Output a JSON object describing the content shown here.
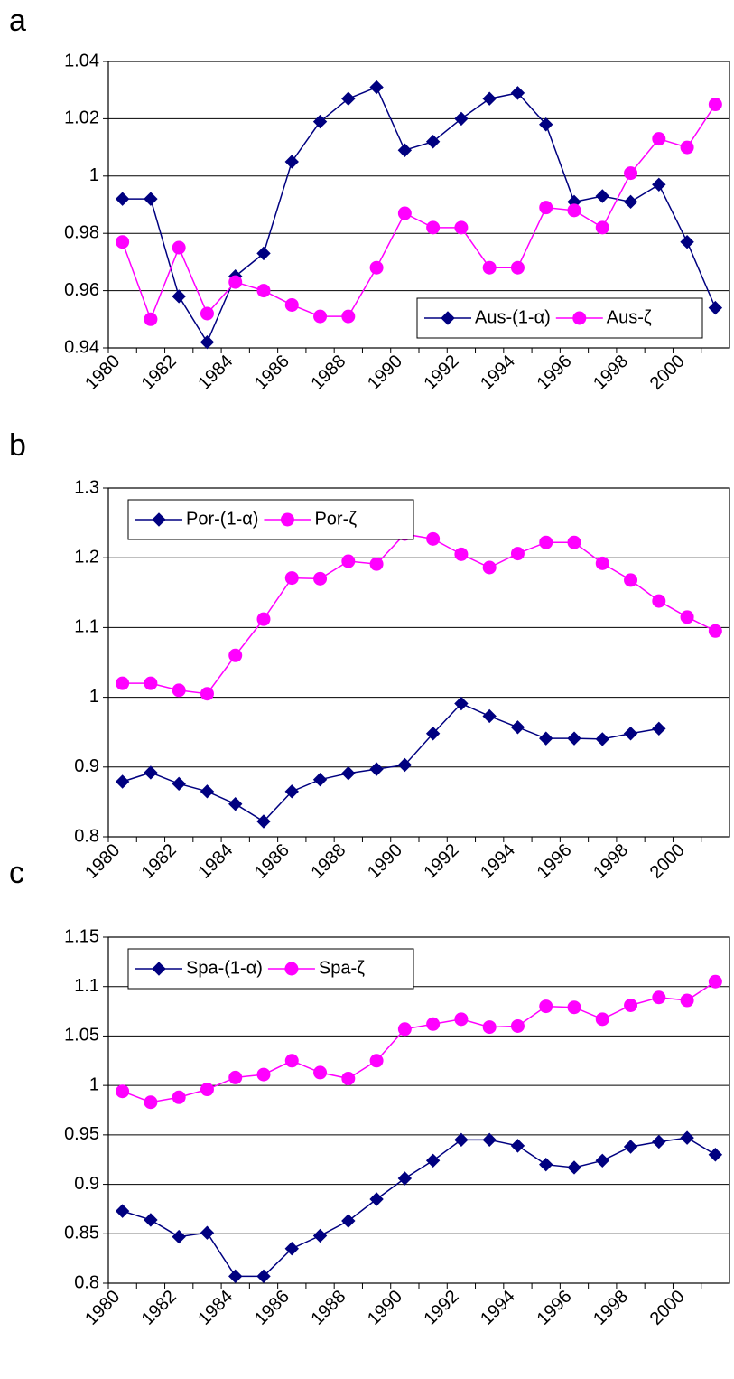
{
  "chart_data": [
    {
      "type": "line",
      "title": "a",
      "categories": [
        "1980",
        null,
        "1982",
        null,
        "1984",
        null,
        "1986",
        null,
        "1988",
        null,
        "1990",
        null,
        "1992",
        null,
        "1994",
        null,
        "1996",
        null,
        "1998",
        null,
        "2000",
        null
      ],
      "series": [
        {
          "name": "Aus-(1-α)",
          "color": "#000080",
          "marker": "diamond",
          "values": [
            0.992,
            0.992,
            0.958,
            0.942,
            0.965,
            0.973,
            1.005,
            1.019,
            1.027,
            1.031,
            1.009,
            1.012,
            1.02,
            1.027,
            1.029,
            1.018,
            0.991,
            0.993,
            0.991,
            0.997,
            0.977,
            0.954
          ]
        },
        {
          "name": "Aus-ζ",
          "color": "#ff00ff",
          "marker": "circle",
          "values": [
            0.977,
            0.95,
            0.975,
            0.952,
            0.963,
            0.96,
            0.955,
            0.951,
            0.951,
            0.968,
            0.987,
            0.982,
            0.982,
            0.968,
            0.968,
            0.989,
            0.988,
            0.982,
            1.001,
            1.013,
            1.01,
            1.025
          ]
        }
      ],
      "ylim": [
        0.94,
        1.04
      ],
      "yticks": [
        0.94,
        0.96,
        0.98,
        1,
        1.02,
        1.04
      ],
      "grid": true,
      "legend": "lower right"
    },
    {
      "type": "line",
      "title": "b",
      "categories": [
        "1980",
        null,
        "1982",
        null,
        "1984",
        null,
        "1986",
        null,
        "1988",
        null,
        "1990",
        null,
        "1992",
        null,
        "1994",
        null,
        "1996",
        null,
        "1998",
        null,
        "2000",
        null
      ],
      "series": [
        {
          "name": "Por-(1-α)",
          "color": "#000080",
          "marker": "diamond",
          "values": [
            0.879,
            0.892,
            0.876,
            0.865,
            0.847,
            0.822,
            0.865,
            0.882,
            0.891,
            0.897,
            0.903,
            0.948,
            0.991,
            0.973,
            0.957,
            0.941,
            0.941,
            0.94,
            0.948,
            0.955,
            null,
            null
          ]
        },
        {
          "name": "Por-ζ",
          "color": "#ff00ff",
          "marker": "circle",
          "values": [
            1.02,
            1.02,
            1.01,
            1.005,
            1.06,
            1.112,
            1.171,
            1.17,
            1.195,
            1.191,
            1.234,
            1.227,
            1.205,
            1.186,
            1.206,
            1.222,
            1.222,
            1.192,
            1.168,
            1.138,
            1.115,
            1.095
          ]
        }
      ],
      "ylim": [
        0.8,
        1.3
      ],
      "yticks": [
        0.8,
        0.9,
        1,
        1.1,
        1.2,
        1.3
      ],
      "grid": true,
      "legend": "upper left"
    },
    {
      "type": "line",
      "title": "c",
      "categories": [
        "1980",
        null,
        "1982",
        null,
        "1984",
        null,
        "1986",
        null,
        "1988",
        null,
        "1990",
        null,
        "1992",
        null,
        "1994",
        null,
        "1996",
        null,
        "1998",
        null,
        "2000",
        null
      ],
      "series": [
        {
          "name": "Spa-(1-α)",
          "color": "#000080",
          "marker": "diamond",
          "values": [
            0.873,
            0.864,
            0.847,
            0.851,
            0.807,
            0.807,
            0.835,
            0.848,
            0.863,
            0.885,
            0.906,
            0.924,
            0.945,
            0.945,
            0.939,
            0.92,
            0.917,
            0.924,
            0.938,
            0.943,
            0.947,
            0.93
          ]
        },
        {
          "name": "Spa-ζ",
          "color": "#ff00ff",
          "marker": "circle",
          "values": [
            0.994,
            0.983,
            0.988,
            0.996,
            1.008,
            1.011,
            1.025,
            1.013,
            1.007,
            1.025,
            1.057,
            1.062,
            1.067,
            1.059,
            1.06,
            1.08,
            1.079,
            1.067,
            1.081,
            1.089,
            1.086,
            1.105
          ]
        }
      ],
      "ylim": [
        0.8,
        1.15
      ],
      "yticks": [
        0.8,
        0.85,
        0.9,
        0.95,
        1,
        1.05,
        1.1,
        1.15
      ],
      "grid": true,
      "legend": "upper left"
    }
  ]
}
